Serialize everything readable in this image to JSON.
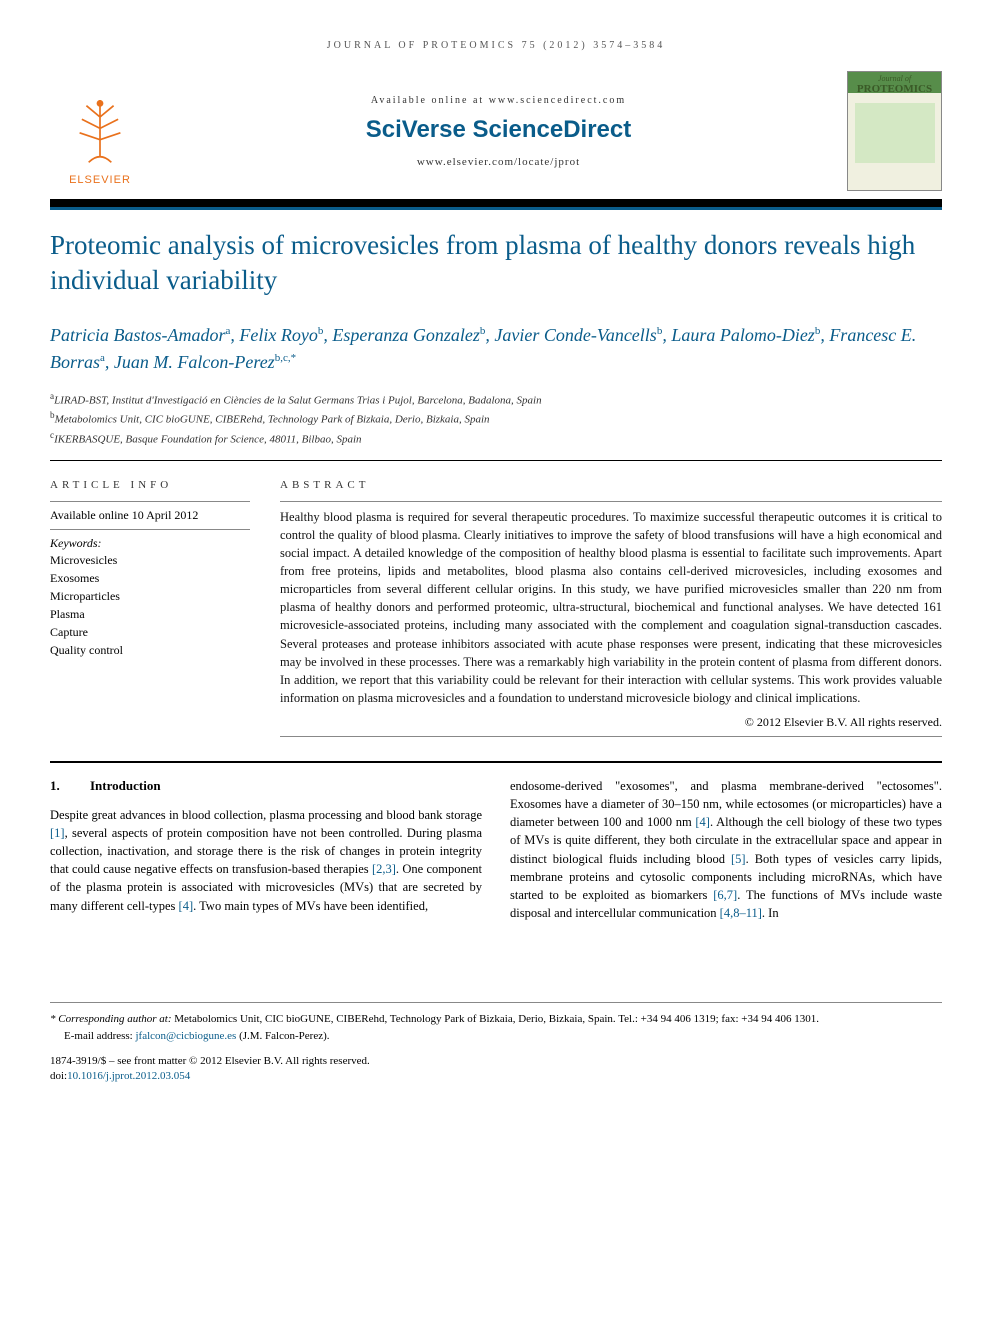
{
  "page_header": "JOURNAL OF PROTEOMICS 75 (2012) 3574–3584",
  "banner": {
    "available_text": "Available online at www.sciencedirect.com",
    "sciverse": "SciVerse ScienceDirect",
    "locate_url": "www.elsevier.com/locate/jprot",
    "publisher_name": "ELSEVIER",
    "journal_cover_prefix": "Journal of",
    "journal_cover_title": "PROTEOMICS"
  },
  "title": "Proteomic analysis of microvesicles from plasma of healthy donors reveals high individual variability",
  "authors": [
    {
      "name": "Patricia Bastos-Amador",
      "affil": "a"
    },
    {
      "name": "Felix Royo",
      "affil": "b"
    },
    {
      "name": "Esperanza Gonzalez",
      "affil": "b"
    },
    {
      "name": "Javier Conde-Vancells",
      "affil": "b"
    },
    {
      "name": "Laura Palomo-Diez",
      "affil": "b"
    },
    {
      "name": "Francesc E. Borras",
      "affil": "a"
    },
    {
      "name": "Juan M. Falcon-Perez",
      "affil": "b,c,*"
    }
  ],
  "affiliations": [
    {
      "sup": "a",
      "text": "LIRAD-BST, Institut d'Investigació en Ciències de la Salut Germans Trias i Pujol, Barcelona, Badalona, Spain"
    },
    {
      "sup": "b",
      "text": "Metabolomics Unit, CIC bioGUNE, CIBERehd, Technology Park of Bizkaia, Derio, Bizkaia, Spain"
    },
    {
      "sup": "c",
      "text": "IKERBASQUE, Basque Foundation for Science, 48011, Bilbao, Spain"
    }
  ],
  "article_info_label": "ARTICLE INFO",
  "abstract_label": "ABSTRACT",
  "available_online": "Available online 10 April 2012",
  "keywords_label": "Keywords:",
  "keywords": [
    "Microvesicles",
    "Exosomes",
    "Microparticles",
    "Plasma",
    "Capture",
    "Quality control"
  ],
  "abstract_text": "Healthy blood plasma is required for several therapeutic procedures. To maximize successful therapeutic outcomes it is critical to control the quality of blood plasma. Clearly initiatives to improve the safety of blood transfusions will have a high economical and social impact. A detailed knowledge of the composition of healthy blood plasma is essential to facilitate such improvements. Apart from free proteins, lipids and metabolites, blood plasma also contains cell-derived microvesicles, including exosomes and microparticles from several different cellular origins. In this study, we have purified microvesicles smaller than 220 nm from plasma of healthy donors and performed proteomic, ultra-structural, biochemical and functional analyses. We have detected 161 microvesicle-associated proteins, including many associated with the complement and coagulation signal-transduction cascades. Several proteases and protease inhibitors associated with acute phase responses were present, indicating that these microvesicles may be involved in these processes. There was a remarkably high variability in the protein content of plasma from different donors. In addition, we report that this variability could be relevant for their interaction with cellular systems. This work provides valuable information on plasma microvesicles and a foundation to understand microvesicle biology and clinical implications.",
  "copyright": "© 2012 Elsevier B.V. All rights reserved.",
  "intro": {
    "num": "1.",
    "heading": "Introduction",
    "col1_part1": "Despite great advances in blood collection, plasma processing and blood bank storage ",
    "ref1": "[1]",
    "col1_part2": ", several aspects of protein composition have not been controlled. During plasma collection, inactivation, and storage there is the risk of changes in protein integrity that could cause negative effects on transfusion-based therapies ",
    "ref2": "[2,3]",
    "col1_part3": ". One component of the plasma protein is associated with microvesicles (MVs) that are secreted by many different cell-types ",
    "ref3": "[4]",
    "col1_part4": ". Two main types of MVs have been identified,",
    "col2_part1": "endosome-derived \"exosomes\", and plasma membrane-derived \"ectosomes\". Exosomes have a diameter of 30–150 nm, while ectosomes (or microparticles) have a diameter between 100 and 1000 nm ",
    "ref4": "[4]",
    "col2_part2": ". Although the cell biology of these two types of MVs is quite different, they both circulate in the extracellular space and appear in distinct biological fluids including blood ",
    "ref5": "[5]",
    "col2_part3": ". Both types of vesicles carry lipids, membrane proteins and cytosolic components including microRNAs, which have started to be exploited as biomarkers ",
    "ref6": "[6,7]",
    "col2_part4": ". The functions of MVs include waste disposal and intercellular communication ",
    "ref7": "[4,8–11]",
    "col2_part5": ". In"
  },
  "footnote": {
    "corresponding_label": "* Corresponding author at:",
    "corresponding_text": " Metabolomics Unit, CIC bioGUNE, CIBERehd, Technology Park of Bizkaia, Derio, Bizkaia, Spain. Tel.: +34 94 406 1319; fax: +34 94 406 1301.",
    "email_label": "E-mail address: ",
    "email": "jfalcon@cicbiogune.es",
    "email_suffix": " (J.M. Falcon-Perez)."
  },
  "footer": {
    "issn_line": "1874-3919/$ – see front matter © 2012 Elsevier B.V. All rights reserved.",
    "doi_label": "doi:",
    "doi": "10.1016/j.jprot.2012.03.054"
  },
  "colors": {
    "primary_blue": "#0a5c8a",
    "elsevier_orange": "#e9711c",
    "black": "#000000",
    "text_grey": "#333333"
  }
}
